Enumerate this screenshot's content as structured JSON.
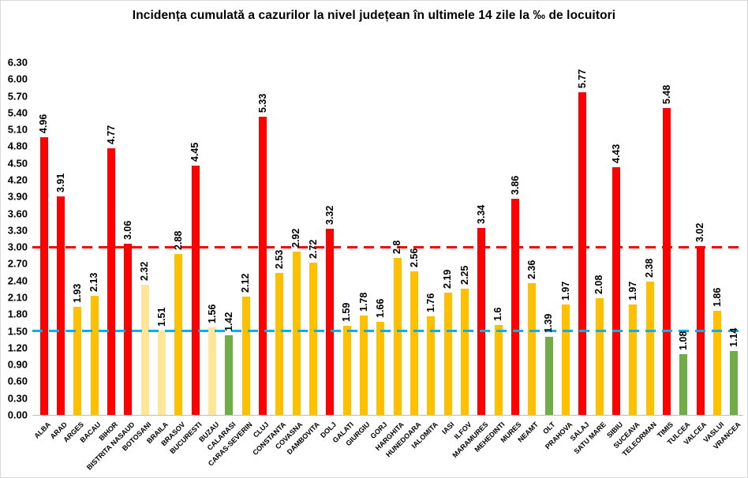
{
  "chart_data": {
    "type": "bar",
    "title": "Incidența cumulată a cazurilor la nivel județean în ultimele 14 zile la ‰ de locuitori",
    "xlabel": "",
    "ylabel": "",
    "ylim": [
      0,
      6.3
    ],
    "ytick_step": 0.3,
    "grid": false,
    "legend": false,
    "categories": [
      "ALBA",
      "ARAD",
      "ARGES",
      "BACAU",
      "BIHOR",
      "BISTRITA NASAUD",
      "BOTOSANI",
      "BRAILA",
      "BRASOV",
      "BUCURESTI",
      "BUZAU",
      "CALARASI",
      "CARAS-SEVERIN",
      "CLUJ",
      "CONSTANTA",
      "COVASNA",
      "DAMBOVITA",
      "DOLJ",
      "GALATI",
      "GIURGIU",
      "GORJ",
      "HARGHITA",
      "HUNEDOARA",
      "IALOMITA",
      "IASI",
      "ILFOV",
      "MARAMURES",
      "MEHEDINTI",
      "MURES",
      "NEAMT",
      "OLT",
      "PRAHOVA",
      "SALAJ",
      "SATU MARE",
      "SIBIU",
      "SUCEAVA",
      "TELEORMAN",
      "TIMIS",
      "TULCEA",
      "VALCEA",
      "VASLUI",
      "VRANCEA"
    ],
    "values": [
      4.96,
      3.91,
      1.93,
      2.13,
      4.77,
      3.06,
      2.32,
      1.51,
      2.88,
      4.45,
      1.56,
      1.42,
      2.12,
      5.33,
      2.53,
      2.92,
      2.72,
      3.32,
      1.59,
      1.78,
      1.66,
      2.8,
      2.56,
      1.76,
      2.19,
      2.25,
      3.34,
      1.6,
      3.86,
      2.36,
      1.39,
      1.97,
      5.77,
      2.08,
      4.43,
      1.97,
      2.38,
      5.48,
      1.08,
      3.02,
      1.86,
      1.14
    ],
    "value_labels": [
      "4.96",
      "3.91",
      "1.93",
      "2.13",
      "4.77",
      "3.06",
      "2.32",
      "1.51",
      "2.88",
      "4.45",
      "1.56",
      "1.42",
      "2.12",
      "5.33",
      "2.53",
      "2.92",
      "2.72",
      "3.32",
      "1.59",
      "1.78",
      "1.66",
      "2.8",
      "2.56",
      "1.76",
      "2.19",
      "2.25",
      "3.34",
      "1.6",
      "3.86",
      "2.36",
      "1.39",
      "1.97",
      "5.77",
      "2.08",
      "4.43",
      "1.97",
      "2.38",
      "5.48",
      "1.08",
      "3.02",
      "1.86",
      "1.14"
    ],
    "bar_colors": [
      "red",
      "red",
      "gold",
      "gold",
      "red",
      "red",
      "pale_yellow",
      "pale_yellow",
      "gold",
      "red",
      "pale_yellow",
      "green",
      "gold",
      "red",
      "gold",
      "gold",
      "gold",
      "red",
      "gold",
      "gold",
      "gold",
      "gold",
      "gold",
      "gold",
      "gold",
      "gold",
      "red",
      "gold",
      "red",
      "gold",
      "green",
      "gold",
      "red",
      "gold",
      "red",
      "gold",
      "gold",
      "red",
      "green",
      "red",
      "gold",
      "green"
    ],
    "palette": {
      "red": "#FF0000",
      "gold": "#FFC000",
      "pale_yellow": "#FFE699",
      "green": "#70AD47"
    },
    "reference_lines": [
      {
        "value": 3.0,
        "color": "#FF0000",
        "style": "dashed",
        "name": "upper-threshold"
      },
      {
        "value": 1.5,
        "color": "#00B0F0",
        "style": "dashed",
        "name": "lower-threshold"
      }
    ]
  }
}
